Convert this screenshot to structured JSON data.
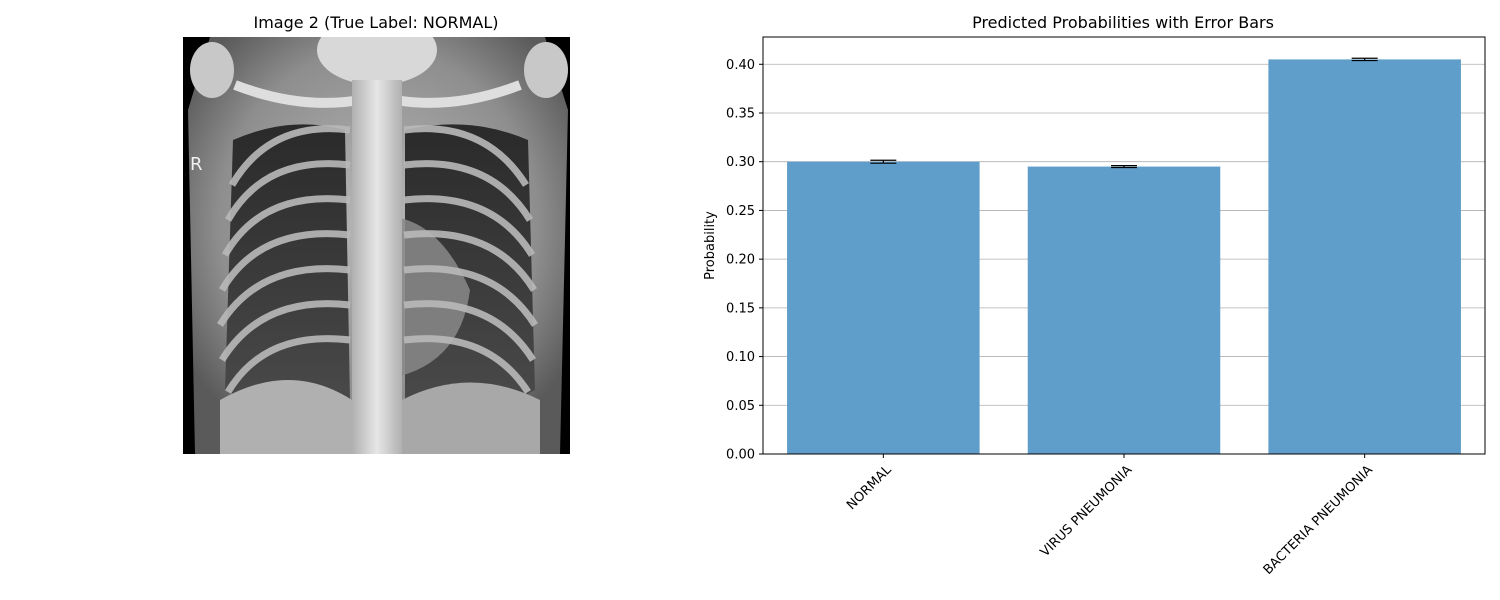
{
  "left_panel": {
    "title": "Image 2 (True Label: NORMAL)",
    "image": {
      "kind": "chest x-ray",
      "marker_text": "R"
    }
  },
  "colors": {
    "bar": "#5f9ecb",
    "grid": "#b0b0b0",
    "axis": "#000000",
    "errorbar": "#000000"
  },
  "chart_data": {
    "type": "bar",
    "title": "Predicted Probabilities with Error Bars",
    "xlabel": "",
    "ylabel": "Probability",
    "categories": [
      "NORMAL",
      "VIRUS PNEUMONIA",
      "BACTERIA PNEUMONIA"
    ],
    "values": [
      0.3,
      0.295,
      0.405
    ],
    "errors": [
      0.0015,
      0.001,
      0.0012
    ],
    "ylim": [
      0,
      0.428
    ],
    "yticks": [
      "0.00",
      "0.05",
      "0.10",
      "0.15",
      "0.20",
      "0.25",
      "0.30",
      "0.35",
      "0.40"
    ],
    "grid": "y-major"
  }
}
